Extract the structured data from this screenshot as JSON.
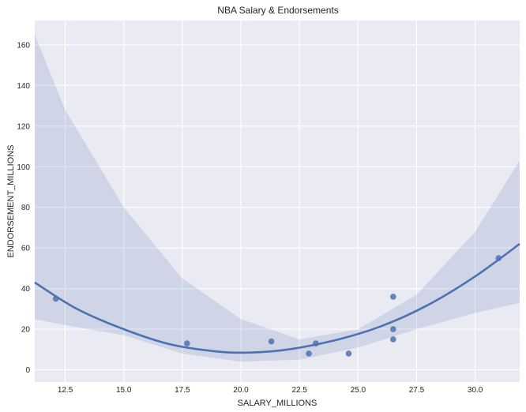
{
  "chart_data": {
    "type": "scatter",
    "title": "NBA Salary & Endorsements",
    "xlabel": "SALARY_MILLIONS",
    "ylabel": "ENDORSEMENT_MILLIONS",
    "xlim": [
      11.2,
      31.9
    ],
    "ylim": [
      -6,
      172
    ],
    "x_ticks": [
      12.5,
      15.0,
      17.5,
      20.0,
      22.5,
      25.0,
      27.5,
      30.0
    ],
    "x_tick_labels": [
      "12.5",
      "15.0",
      "17.5",
      "20.0",
      "22.5",
      "25.0",
      "27.5",
      "30.0"
    ],
    "y_ticks": [
      0,
      20,
      40,
      60,
      80,
      100,
      120,
      140,
      160
    ],
    "y_tick_labels": [
      "0",
      "20",
      "40",
      "60",
      "80",
      "100",
      "120",
      "140",
      "160"
    ],
    "grid": true,
    "points": {
      "x": [
        12.1,
        17.7,
        21.3,
        22.9,
        23.2,
        24.6,
        26.5,
        26.5,
        26.5,
        31.0
      ],
      "y": [
        35,
        13,
        14,
        8,
        13,
        8,
        36,
        20,
        15,
        55
      ]
    },
    "fit": {
      "type": "quadratic",
      "x": [
        11.2,
        13.0,
        15.0,
        17.0,
        19.0,
        20.4,
        22.0,
        24.0,
        26.0,
        28.0,
        30.0,
        31.9
      ],
      "y": [
        43,
        30,
        20,
        12.5,
        9,
        8.5,
        10,
        14.5,
        21.5,
        32,
        46,
        62
      ]
    },
    "confidence_band": {
      "x": [
        11.2,
        12.5,
        15.0,
        17.5,
        20.0,
        22.5,
        25.0,
        27.5,
        30.0,
        31.9
      ],
      "upper": [
        165,
        128,
        80,
        45,
        25,
        15,
        20,
        37,
        68,
        103
      ],
      "lower": [
        25,
        22,
        17,
        8,
        4,
        5,
        11,
        20,
        28,
        33
      ]
    },
    "colors": {
      "background": "#eaeaf2",
      "grid": "#ffffff",
      "point": "#4c72b0",
      "line": "#4c72b0",
      "band": "#4c72b0"
    }
  }
}
